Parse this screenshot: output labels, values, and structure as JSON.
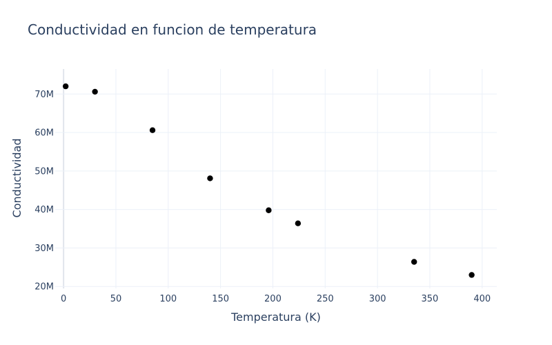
{
  "chart_data": {
    "type": "scatter",
    "title": "Conductividad en funcion de temperatura",
    "xlabel": "Temperatura (K)",
    "ylabel": "Conductividad",
    "xlim": [
      -8,
      414
    ],
    "ylim": [
      19500000,
      76500000
    ],
    "x_ticks": [
      0,
      50,
      100,
      150,
      200,
      250,
      300,
      350,
      400
    ],
    "x_tick_labels": [
      "0",
      "50",
      "100",
      "150",
      "200",
      "250",
      "300",
      "350",
      "400"
    ],
    "y_ticks": [
      20000000,
      30000000,
      40000000,
      50000000,
      60000000,
      70000000
    ],
    "y_tick_labels": [
      "20M",
      "30M",
      "40M",
      "50M",
      "60M",
      "70M"
    ],
    "grid": true,
    "marker_color": "#000000",
    "series": [
      {
        "x": [
          2,
          30,
          85,
          140,
          196,
          224,
          335,
          390
        ],
        "y": [
          72000000,
          70600000,
          60600000,
          48100000,
          39800000,
          36400000,
          26400000,
          23000000
        ]
      }
    ]
  }
}
